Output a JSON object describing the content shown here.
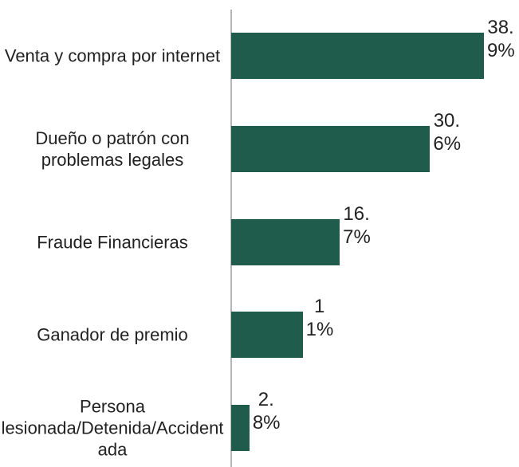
{
  "chart_data": {
    "type": "bar",
    "orientation": "horizontal",
    "categories": [
      "Venta y compra por internet",
      "Dueño o patrón con problemas legales",
      "Fraude Financieras",
      "Ganador de premio",
      "Persona lesionada/Detenida/Accidentada"
    ],
    "values": [
      38.9,
      30.6,
      16.7,
      11,
      2.8
    ],
    "value_labels": [
      "38.9%",
      "30.6%",
      "16.7%",
      "11%",
      "2.8%"
    ],
    "color": "#1f5c4b"
  }
}
